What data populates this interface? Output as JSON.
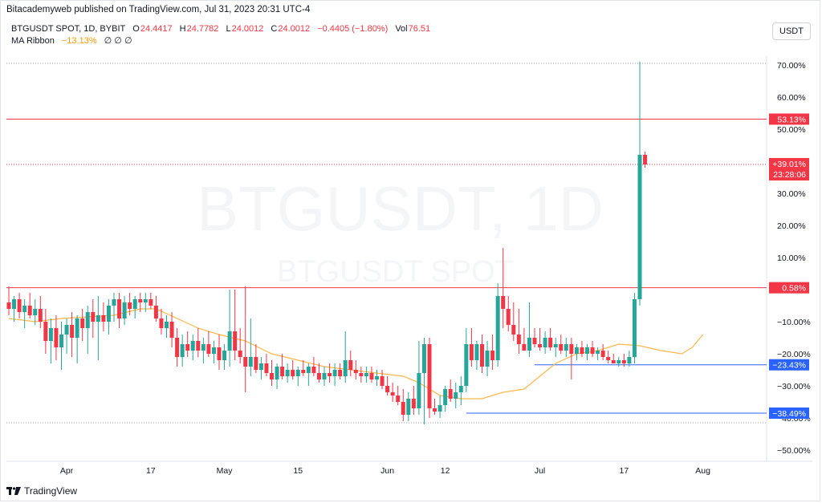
{
  "header": {
    "publish_text": "Bitacademyweb published on TradingView.com, Jul 31, 2023 20:31 UTC-4",
    "symbol": "BTGUSDT SPOT, 1D, BYBIT",
    "o_label": "O",
    "o_value": "24.4417",
    "h_label": "H",
    "h_value": "24.7782",
    "l_label": "L",
    "l_value": "24.0012",
    "c_label": "C",
    "c_value": "24.0012",
    "change": "−0.4405 (−1.80%)",
    "vol_label": "Vol",
    "vol_value": "76.51",
    "indicator_name": "MA Ribbon",
    "indicator_value": "−13.13%",
    "indicator_extra": "∅ ∅ ∅",
    "currency_button": "USDT"
  },
  "watermark": {
    "line1": "BTGUSDT, 1D",
    "line2": "BTGUSDT SPOT"
  },
  "footer": {
    "logo_text": "TradingView"
  },
  "colors": {
    "up": "#26a69a",
    "down": "#f23645",
    "ma": "#ffb74d",
    "hline_red": "#f23645",
    "hline_blue": "#2962ff"
  },
  "chart_data": {
    "type": "candlestick",
    "y_unit": "percent",
    "ylim": [
      -55,
      75
    ],
    "y_ticks": [
      70,
      60,
      50,
      40,
      30,
      20,
      10,
      -10,
      -20,
      -30,
      -40,
      -50
    ],
    "y_tick_labels": [
      "70.00%",
      "60.00%",
      "50.00%",
      "40.00%",
      "30.00%",
      "20.00%",
      "10.00%",
      "−10.00%",
      "−20.00%",
      "−30.00%",
      "−40.00%",
      "−50.00%"
    ],
    "x_ticks": [
      {
        "label": "Apr",
        "index": 11
      },
      {
        "label": "17",
        "index": 27
      },
      {
        "label": "May",
        "index": 41
      },
      {
        "label": "15",
        "index": 55
      },
      {
        "label": "Jun",
        "index": 72
      },
      {
        "label": "12",
        "index": 83
      },
      {
        "label": "Jul",
        "index": 101
      },
      {
        "label": "17",
        "index": 117
      },
      {
        "label": "Aug",
        "index": 132
      }
    ],
    "horizontal_lines": [
      {
        "value": 53.13,
        "label": "53.13%",
        "color": "#f23645",
        "style": "solid"
      },
      {
        "value": 0.58,
        "label": "0.58%",
        "color": "#f23645",
        "style": "solid"
      },
      {
        "value": -23.43,
        "label": "−23.43%",
        "color": "#2962ff",
        "style": "solid",
        "from_index": 100
      },
      {
        "value": -38.49,
        "label": "−38.49%",
        "color": "#2962ff",
        "style": "solid",
        "from_index": 87
      }
    ],
    "dotted_lines": [
      70.5,
      -41.5
    ],
    "price_label": {
      "value": 39.01,
      "line1": "+39.01%",
      "line2": "23:28:06"
    },
    "candles": [
      {
        "o": -4,
        "h": 1,
        "l": -8,
        "c": -6
      },
      {
        "o": -6,
        "h": -2,
        "l": -10,
        "c": -3
      },
      {
        "o": -3,
        "h": -1,
        "l": -9,
        "c": -7
      },
      {
        "o": -7,
        "h": -3,
        "l": -12,
        "c": -5
      },
      {
        "o": -5,
        "h": -1,
        "l": -9,
        "c": -8
      },
      {
        "o": -8,
        "h": -3,
        "l": -11,
        "c": -6
      },
      {
        "o": -6,
        "h": -2,
        "l": -12,
        "c": -10
      },
      {
        "o": -10,
        "h": -6,
        "l": -20,
        "c": -16
      },
      {
        "o": -16,
        "h": -9,
        "l": -23,
        "c": -12
      },
      {
        "o": -12,
        "h": -8,
        "l": -22,
        "c": -18
      },
      {
        "o": -18,
        "h": -10,
        "l": -25,
        "c": -14
      },
      {
        "o": -14,
        "h": -9,
        "l": -20,
        "c": -11
      },
      {
        "o": -11,
        "h": -7,
        "l": -21,
        "c": -15
      },
      {
        "o": -15,
        "h": -8,
        "l": -23,
        "c": -9
      },
      {
        "o": -9,
        "h": -6,
        "l": -16,
        "c": -12
      },
      {
        "o": -12,
        "h": -5,
        "l": -20,
        "c": -7
      },
      {
        "o": -7,
        "h": -3,
        "l": -15,
        "c": -10
      },
      {
        "o": -10,
        "h": -2,
        "l": -22,
        "c": -8
      },
      {
        "o": -8,
        "h": -4,
        "l": -13,
        "c": -10
      },
      {
        "o": -10,
        "h": -3,
        "l": -14,
        "c": -5
      },
      {
        "o": -5,
        "h": -1,
        "l": -10,
        "c": -3
      },
      {
        "o": -3,
        "h": -1,
        "l": -12,
        "c": -9
      },
      {
        "o": -9,
        "h": -2,
        "l": -11,
        "c": -4
      },
      {
        "o": -4,
        "h": -1,
        "l": -8,
        "c": -6
      },
      {
        "o": -6,
        "h": -2,
        "l": -9,
        "c": -3
      },
      {
        "o": -3,
        "h": -1,
        "l": -7,
        "c": -4
      },
      {
        "o": -4,
        "h": -1,
        "l": -7,
        "c": -3
      },
      {
        "o": -3,
        "h": -1,
        "l": -6,
        "c": -5
      },
      {
        "o": -5,
        "h": -2,
        "l": -10,
        "c": -9
      },
      {
        "o": -9,
        "h": -6,
        "l": -14,
        "c": -12
      },
      {
        "o": -12,
        "h": -8,
        "l": -15,
        "c": -10
      },
      {
        "o": -10,
        "h": -7,
        "l": -18,
        "c": -15
      },
      {
        "o": -15,
        "h": -12,
        "l": -24,
        "c": -21
      },
      {
        "o": -21,
        "h": -14,
        "l": -24,
        "c": -17
      },
      {
        "o": -17,
        "h": -13,
        "l": -21,
        "c": -19
      },
      {
        "o": -19,
        "h": -14,
        "l": -22,
        "c": -16
      },
      {
        "o": -16,
        "h": -12,
        "l": -21,
        "c": -19
      },
      {
        "o": -19,
        "h": -15,
        "l": -23,
        "c": -17
      },
      {
        "o": -17,
        "h": -13,
        "l": -21,
        "c": -20
      },
      {
        "o": -20,
        "h": -16,
        "l": -23,
        "c": -18
      },
      {
        "o": -18,
        "h": -14,
        "l": -25,
        "c": -22
      },
      {
        "o": -22,
        "h": -17,
        "l": -25,
        "c": -19
      },
      {
        "o": -19,
        "h": 0,
        "l": -24,
        "c": -13
      },
      {
        "o": -13,
        "h": 0,
        "l": -22,
        "c": -19
      },
      {
        "o": -19,
        "h": -12,
        "l": -23,
        "c": -21
      },
      {
        "o": -21,
        "h": 1,
        "l": -32,
        "c": -24
      },
      {
        "o": -24,
        "h": -9,
        "l": -27,
        "c": -21
      },
      {
        "o": -21,
        "h": -17,
        "l": -26,
        "c": -25
      },
      {
        "o": -25,
        "h": -21,
        "l": -28,
        "c": -23
      },
      {
        "o": -23,
        "h": -20,
        "l": -27,
        "c": -26
      },
      {
        "o": -26,
        "h": -22,
        "l": -30,
        "c": -28
      },
      {
        "o": -28,
        "h": -23,
        "l": -31,
        "c": -24
      },
      {
        "o": -24,
        "h": -20,
        "l": -28,
        "c": -27
      },
      {
        "o": -27,
        "h": -23,
        "l": -29,
        "c": -25
      },
      {
        "o": -25,
        "h": -22,
        "l": -28,
        "c": -27
      },
      {
        "o": -27,
        "h": -24,
        "l": -30,
        "c": -25
      },
      {
        "o": -25,
        "h": -22,
        "l": -27,
        "c": -26
      },
      {
        "o": -26,
        "h": -23,
        "l": -30,
        "c": -24
      },
      {
        "o": -24,
        "h": -21,
        "l": -27,
        "c": -26
      },
      {
        "o": -26,
        "h": -23,
        "l": -29,
        "c": -28
      },
      {
        "o": -28,
        "h": -24,
        "l": -30,
        "c": -26
      },
      {
        "o": -26,
        "h": -23,
        "l": -29,
        "c": -27
      },
      {
        "o": -27,
        "h": -23,
        "l": -30,
        "c": -25
      },
      {
        "o": -25,
        "h": -23,
        "l": -28,
        "c": -27
      },
      {
        "o": -27,
        "h": -13,
        "l": -29,
        "c": -22
      },
      {
        "o": -22,
        "h": -19,
        "l": -27,
        "c": -25
      },
      {
        "o": -25,
        "h": -22,
        "l": -28,
        "c": -26
      },
      {
        "o": -26,
        "h": -24,
        "l": -29,
        "c": -27
      },
      {
        "o": -27,
        "h": -24,
        "l": -29,
        "c": -26
      },
      {
        "o": -26,
        "h": -24,
        "l": -29,
        "c": -28
      },
      {
        "o": -28,
        "h": -25,
        "l": -30,
        "c": -27
      },
      {
        "o": -27,
        "h": -25,
        "l": -31,
        "c": -30
      },
      {
        "o": -30,
        "h": -27,
        "l": -33,
        "c": -32
      },
      {
        "o": -32,
        "h": -29,
        "l": -35,
        "c": -33
      },
      {
        "o": -33,
        "h": -30,
        "l": -36,
        "c": -35
      },
      {
        "o": -35,
        "h": -31,
        "l": -41,
        "c": -39
      },
      {
        "o": -39,
        "h": -32,
        "l": -41,
        "c": -34
      },
      {
        "o": -34,
        "h": -30,
        "l": -39,
        "c": -37
      },
      {
        "o": -37,
        "h": -16,
        "l": -39,
        "c": -26
      },
      {
        "o": -26,
        "h": -15,
        "l": -42,
        "c": -17
      },
      {
        "o": -17,
        "h": -15,
        "l": -40,
        "c": -37
      },
      {
        "o": -37,
        "h": -34,
        "l": -39,
        "c": -38
      },
      {
        "o": -38,
        "h": -33,
        "l": -40,
        "c": -36
      },
      {
        "o": -36,
        "h": -30,
        "l": -38,
        "c": -31
      },
      {
        "o": -31,
        "h": -28,
        "l": -35,
        "c": -34
      },
      {
        "o": -34,
        "h": -29,
        "l": -37,
        "c": -32
      },
      {
        "o": -32,
        "h": -27,
        "l": -36,
        "c": -30
      },
      {
        "o": -30,
        "h": -12,
        "l": -32,
        "c": -17
      },
      {
        "o": -17,
        "h": -12,
        "l": -24,
        "c": -22
      },
      {
        "o": -22,
        "h": -16,
        "l": -25,
        "c": -17
      },
      {
        "o": -17,
        "h": -14,
        "l": -26,
        "c": -24
      },
      {
        "o": -24,
        "h": -16,
        "l": -27,
        "c": -19
      },
      {
        "o": -19,
        "h": -14,
        "l": -25,
        "c": -22
      },
      {
        "o": -22,
        "h": 2,
        "l": -24,
        "c": -2
      },
      {
        "o": -2,
        "h": 13,
        "l": -12,
        "c": -6
      },
      {
        "o": -6,
        "h": -2,
        "l": -13,
        "c": -11
      },
      {
        "o": -11,
        "h": -4,
        "l": -16,
        "c": -14
      },
      {
        "o": -14,
        "h": -6,
        "l": -20,
        "c": -17
      },
      {
        "o": -17,
        "h": -12,
        "l": -19,
        "c": -19
      },
      {
        "o": -19,
        "h": -4,
        "l": -21,
        "c": -15
      },
      {
        "o": -15,
        "h": -12,
        "l": -18,
        "c": -17
      },
      {
        "o": -17,
        "h": -12,
        "l": -19,
        "c": -18
      },
      {
        "o": -18,
        "h": -13,
        "l": -20,
        "c": -15
      },
      {
        "o": -15,
        "h": -12,
        "l": -19,
        "c": -18
      },
      {
        "o": -18,
        "h": -15,
        "l": -21,
        "c": -17
      },
      {
        "o": -17,
        "h": -14,
        "l": -20,
        "c": -19
      },
      {
        "o": -19,
        "h": -15,
        "l": -21,
        "c": -17
      },
      {
        "o": -17,
        "h": -15,
        "l": -28,
        "c": -20
      },
      {
        "o": -20,
        "h": -17,
        "l": -22,
        "c": -18
      },
      {
        "o": -18,
        "h": -16,
        "l": -21,
        "c": -20
      },
      {
        "o": -20,
        "h": -17,
        "l": -22,
        "c": -18
      },
      {
        "o": -18,
        "h": -16,
        "l": -21,
        "c": -20
      },
      {
        "o": -20,
        "h": -18,
        "l": -22,
        "c": -19
      },
      {
        "o": -19,
        "h": -17,
        "l": -22,
        "c": -21
      },
      {
        "o": -21,
        "h": -19,
        "l": -23,
        "c": -22
      },
      {
        "o": -22,
        "h": -20,
        "l": -23,
        "c": -23
      },
      {
        "o": -23,
        "h": -21,
        "l": -24,
        "c": -22
      },
      {
        "o": -22,
        "h": -20,
        "l": -24,
        "c": -23
      },
      {
        "o": -23,
        "h": -19,
        "l": -24,
        "c": -21
      },
      {
        "o": -21,
        "h": -1,
        "l": -23,
        "c": -3
      },
      {
        "o": -3,
        "h": 71,
        "l": -5,
        "c": 42
      },
      {
        "o": 42,
        "h": 43,
        "l": 38,
        "c": 39
      }
    ],
    "ma_line": [
      [
        0,
        -9
      ],
      [
        5,
        -10
      ],
      [
        10,
        -9
      ],
      [
        15,
        -8.5
      ],
      [
        20,
        -8
      ],
      [
        25,
        -6
      ],
      [
        28,
        -6
      ],
      [
        32,
        -9
      ],
      [
        36,
        -12
      ],
      [
        40,
        -14
      ],
      [
        45,
        -16
      ],
      [
        50,
        -20
      ],
      [
        55,
        -22
      ],
      [
        60,
        -24
      ],
      [
        65,
        -25
      ],
      [
        70,
        -26
      ],
      [
        75,
        -27
      ],
      [
        78,
        -29
      ],
      [
        82,
        -33
      ],
      [
        86,
        -34
      ],
      [
        90,
        -34
      ],
      [
        94,
        -32
      ],
      [
        98,
        -31
      ],
      [
        101,
        -27
      ],
      [
        104,
        -23
      ],
      [
        108,
        -20
      ],
      [
        112,
        -19
      ],
      [
        116,
        -17
      ],
      [
        120,
        -17.5
      ],
      [
        124,
        -19
      ],
      [
        128,
        -20
      ],
      [
        130,
        -18
      ],
      [
        132,
        -14
      ]
    ]
  }
}
